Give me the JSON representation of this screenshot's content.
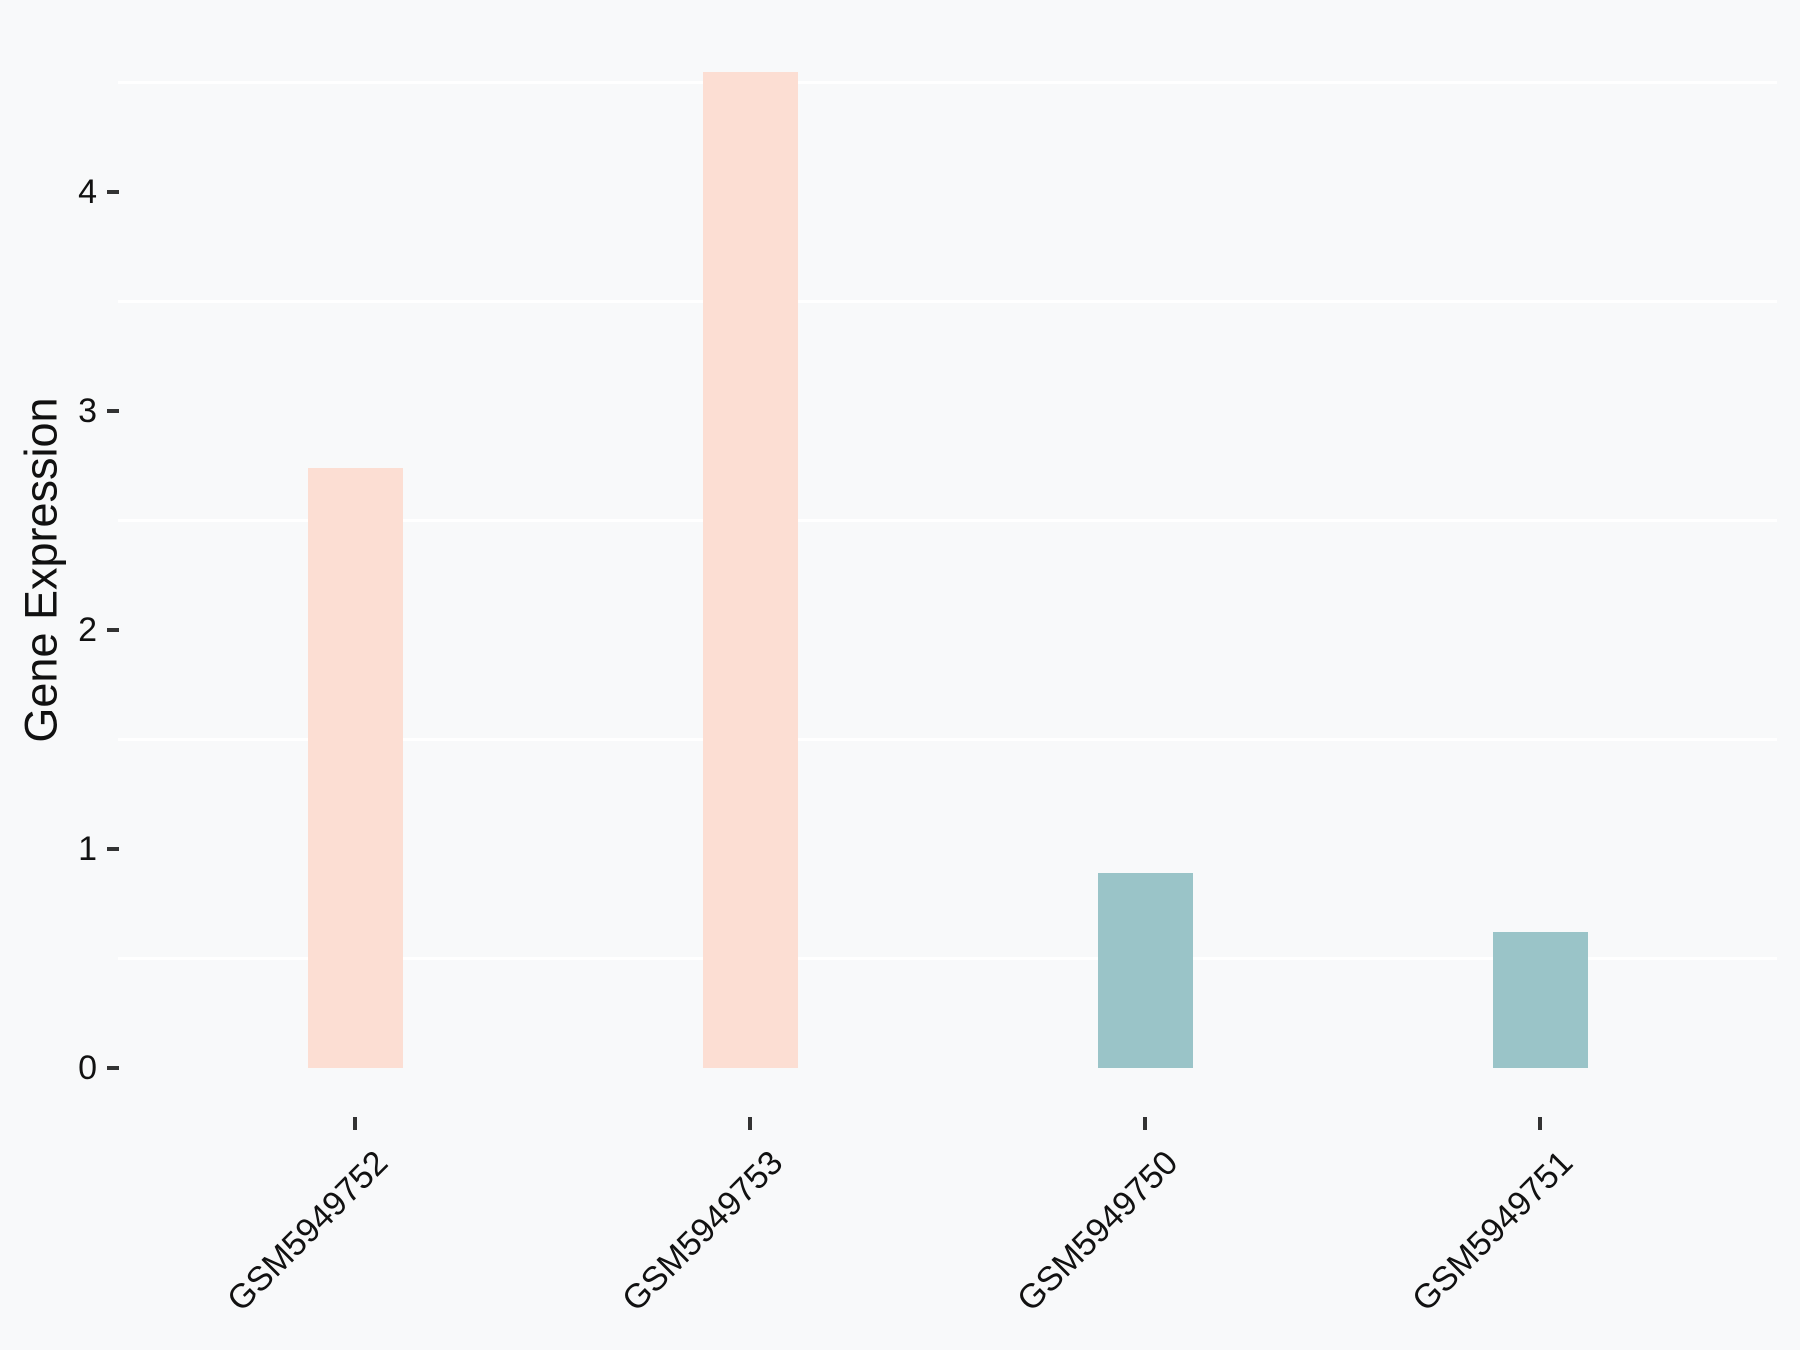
{
  "chart_data": {
    "type": "bar",
    "title": "",
    "xlabel": "",
    "ylabel": "Gene Expression",
    "categories": [
      "GSM5949752",
      "GSM5949753",
      "GSM5949750",
      "GSM5949751"
    ],
    "values": [
      2.74,
      4.55,
      0.89,
      0.62
    ],
    "bar_colors": [
      "#FCDED3",
      "#FCDED3",
      "#9AC4C8",
      "#9AC4C8"
    ],
    "y_ticks": [
      0,
      1,
      2,
      3,
      4
    ],
    "y_minor_gridlines": [
      0.5,
      1.5,
      2.5,
      3.5,
      4.5
    ],
    "ylim": [
      -0.23,
      4.78
    ],
    "x_tick_label_rotation_deg": 45,
    "grid": "minor horizontal gridlines only, white on light gray background",
    "legend_position": "none"
  },
  "colors": {
    "background": "#F8F9FA",
    "gridline": "#FFFFFF",
    "tick_mark": "#333333",
    "text": "#111111",
    "bar_peach": "#FCDED3",
    "bar_teal": "#9AC4C8"
  }
}
